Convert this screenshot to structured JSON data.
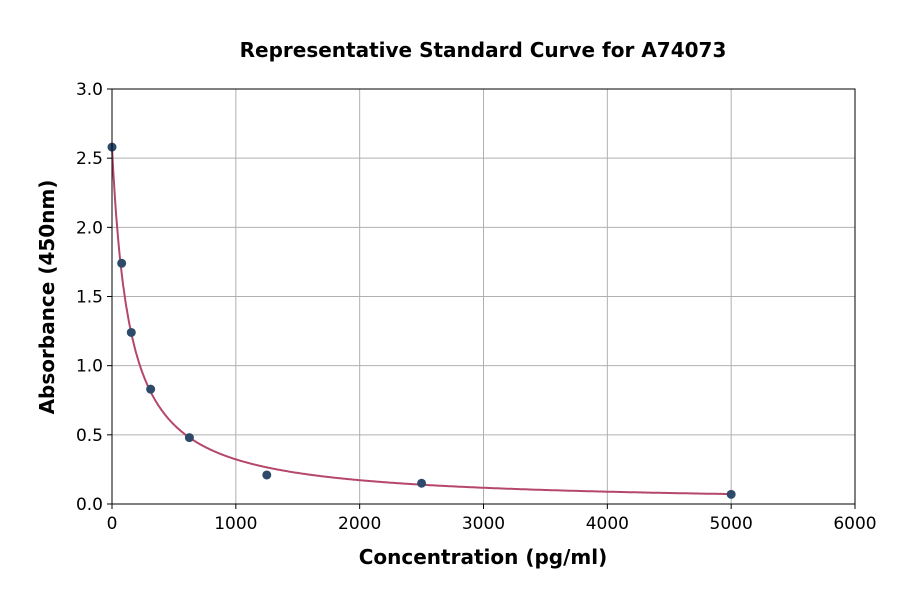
{
  "chart_data": {
    "type": "scatter",
    "title": "Representative Standard Curve for A74073",
    "xlabel": "Concentration (pg/ml)",
    "ylabel": "Absorbance (450nm)",
    "xlim": [
      0,
      6000
    ],
    "ylim": [
      0,
      3.0
    ],
    "xticks": [
      "0",
      "1000",
      "2000",
      "3000",
      "4000",
      "5000",
      "6000"
    ],
    "yticks": [
      "0.0",
      "0.5",
      "1.0",
      "1.5",
      "2.0",
      "2.5",
      "3.0"
    ],
    "grid": true,
    "points": {
      "x": [
        0,
        78,
        156,
        312,
        625,
        1250,
        2500,
        5000
      ],
      "y": [
        2.58,
        1.74,
        1.24,
        0.83,
        0.48,
        0.21,
        0.15,
        0.07
      ]
    },
    "fit_curve": true,
    "colors": {
      "points": "#2e4a6b",
      "curve": "#b5476a",
      "grid": "#b0b0b0"
    }
  }
}
